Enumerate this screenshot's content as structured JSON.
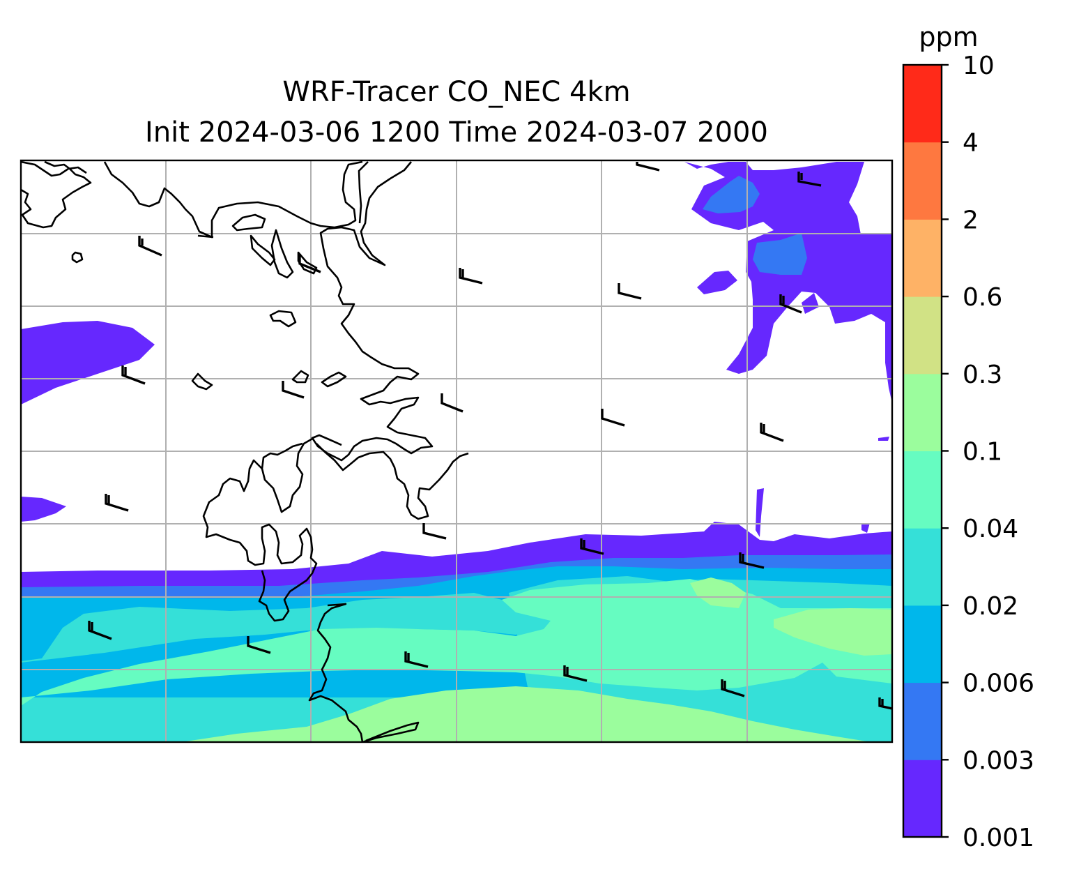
{
  "title": {
    "line1": "WRF-Tracer CO_NEC 4km",
    "line2": "Init 2024-03-06 1200 Time 2024-03-07 2000"
  },
  "colorbar": {
    "unit": "ppm",
    "ticks": [
      "0.001",
      "0.003",
      "0.006",
      "0.02",
      "0.04",
      "0.1",
      "0.3",
      "0.6",
      "2",
      "4",
      "10"
    ],
    "colors": [
      "#6628fe",
      "#3478f3",
      "#00b7eb",
      "#35e0d8",
      "#66fcc1",
      "#9bfd9d",
      "#d1e285",
      "#feb266",
      "#fe7840",
      "#ff2a19"
    ]
  },
  "map": {
    "field": "CO_NEC tracer concentration",
    "features": [
      "coastline",
      "gridlines",
      "wind-barbs"
    ]
  }
}
